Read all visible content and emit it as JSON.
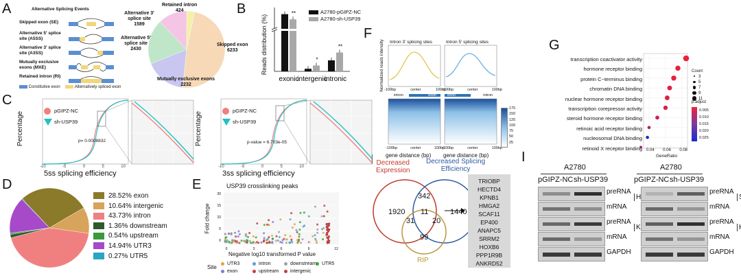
{
  "panel_labels": [
    "A",
    "B",
    "C",
    "D",
    "E",
    "F",
    "G",
    "H",
    "I"
  ],
  "panelA": {
    "header": "Alternative Splicing Events",
    "events": [
      {
        "label": "Skipped exon (SE)"
      },
      {
        "label": "Alternative 5' splice site (A5SS)"
      },
      {
        "label": "Alternative 3' splice site (A3SS)"
      },
      {
        "label": "Mutually exclusive exons (MXE)"
      },
      {
        "label": "Retained intron (RI)"
      }
    ],
    "legend": [
      "Constitutive exon",
      "Alternatively spliced exon"
    ],
    "colors": {
      "constitutive": "#5b8fd1",
      "alternative": "#f2d77a"
    },
    "pie": [
      {
        "label": "Skipped exon",
        "value": 6233,
        "color": "#f7d9b8"
      },
      {
        "label": "Mutually exclusive exons",
        "value": 2232,
        "color": "#c9c6ef"
      },
      {
        "label": "Alternative 5' splice site",
        "value": 2430,
        "color": "#bfe6c8"
      },
      {
        "label": "Alternative 3' splice site",
        "value": 1589,
        "color": "#f4c5e4"
      },
      {
        "label": "Retained intron",
        "value": 424,
        "color": "#f3f0a8"
      }
    ]
  },
  "panelB": {
    "ylabel": "Reads distribution (%)",
    "categories": [
      "exonic",
      "intergenic",
      "intronic"
    ],
    "series": [
      {
        "name": "A2780-pGIPZ-NC",
        "color": "#111111",
        "values": [
          88,
          4,
          17
        ]
      },
      {
        "name": "A2780-sh-USP39",
        "color": "#a8a8a8",
        "values": [
          80,
          9,
          29
        ]
      }
    ],
    "significance": [
      "**",
      "*",
      "**"
    ],
    "ylim": [
      0,
      95
    ]
  },
  "panelC": {
    "left": {
      "xlabel": "5ss splicing efficiency",
      "ylabel": "Percentage",
      "pvalue": "p= 0.0008832",
      "ticks": [
        "-10",
        "-5",
        "0",
        "5",
        "10"
      ]
    },
    "right": {
      "xlabel": "3ss splicing efficiency",
      "ylabel": "Percentage",
      "pvalue": "p-value = 6.703e-05",
      "ticks": [
        "-10",
        "-5",
        "0",
        "5",
        "10"
      ]
    },
    "legend": [
      "pGIPZ-NC",
      "sh-USP39"
    ],
    "colors": {
      "nc": "#f08080",
      "sh": "#1fc2c2"
    }
  },
  "panelD": {
    "slices": [
      {
        "pct": 28.52,
        "label": "28.52%  exon",
        "color": "#8b7a2a"
      },
      {
        "pct": 10.64,
        "label": "10.64%  intergenic",
        "color": "#d8a35a"
      },
      {
        "pct": 43.73,
        "label": "43.73%  intron",
        "color": "#f08080"
      },
      {
        "pct": 1.36,
        "label": "1.36%  downstream",
        "color": "#2e5a2e"
      },
      {
        "pct": 0.54,
        "label": "0.54%  upstream",
        "color": "#3a9a3a"
      },
      {
        "pct": 14.94,
        "label": "14.94%  UTR3",
        "color": "#a64ac9"
      },
      {
        "pct": 0.27,
        "label": "0.27%  UTR5",
        "color": "#2aa6c0"
      }
    ]
  },
  "panelE": {
    "title": "USP39 crosslinking peaks",
    "xlabel": "Negative log10 transformed P value",
    "ylabel": "Fold change",
    "yticks": [
      "20",
      "15",
      "10",
      "5",
      "0"
    ],
    "xticks": [
      "0",
      "3",
      "6",
      "9",
      "12"
    ],
    "legend_title": "Site",
    "legend": [
      {
        "name": "UTR3",
        "color": "#e8a33a"
      },
      {
        "name": "intron",
        "color": "#5aa0d0"
      },
      {
        "name": "downstream",
        "color": "#a0a0a0"
      },
      {
        "name": "UTR5",
        "color": "#3aaa3a"
      },
      {
        "name": "exon",
        "color": "#8a7ad0"
      },
      {
        "name": "upstream",
        "color": "#d03a3a"
      },
      {
        "name": "intergenic",
        "color": "#c04040"
      }
    ]
  },
  "panelF": {
    "ylabel": "Normalized reads intensity",
    "left_title": "Intron 3' splicing sites",
    "right_title": "Intron 5' splicing sites",
    "left_axis": [
      "-100bp",
      "center",
      "100bp"
    ],
    "right_axis": [
      "-100bp",
      "center",
      "100bp"
    ],
    "left_regions": [
      "intron",
      "exon"
    ],
    "right_regions": [
      "exon",
      "intron"
    ],
    "xlabel": "gene distance (bp)",
    "colorbar": [
      "175",
      "150",
      "125",
      "100",
      "75",
      "50",
      "25"
    ],
    "colors": {
      "left": "#e2c64a",
      "right": "#6aaee0"
    }
  },
  "panelG": {
    "terms": [
      {
        "name": "transcription coactivator activity",
        "ratio": 0.085,
        "count": 11,
        "padj": 0.001
      },
      {
        "name": "hormone receptor binding",
        "ratio": 0.075,
        "count": 9,
        "padj": 0.002
      },
      {
        "name": "protein C−terminus binding",
        "ratio": 0.07,
        "count": 9,
        "padj": 0.002
      },
      {
        "name": "chromatin DNA binding",
        "ratio": 0.065,
        "count": 8,
        "padj": 0.003
      },
      {
        "name": "nuclear hormone receptor binding",
        "ratio": 0.062,
        "count": 8,
        "padj": 0.003
      },
      {
        "name": "transcription corepressor activity",
        "ratio": 0.06,
        "count": 7,
        "padj": 0.004
      },
      {
        "name": "steroid hormone receptor binding",
        "ratio": 0.05,
        "count": 6,
        "padj": 0.005
      },
      {
        "name": "retinoic acid receptor binding",
        "ratio": 0.04,
        "count": 4,
        "padj": 0.008
      },
      {
        "name": "nucleosomal DNA binding",
        "ratio": 0.038,
        "count": 4,
        "padj": 0.025
      },
      {
        "name": "retinoid X receptor binding",
        "ratio": 0.03,
        "count": 3,
        "padj": 0.01
      }
    ],
    "xlabel": "GeneRatio",
    "xticks": [
      "0.04",
      "0.06",
      "0.08"
    ],
    "count_title": "Count",
    "count_levels": [
      "3",
      "5",
      "7",
      "9",
      "11"
    ],
    "padj_title": "p.adjust",
    "padj_ticks": [
      "0.005",
      "0.010",
      "0.015",
      "0.020",
      "0.025"
    ]
  },
  "panelH": {
    "sets": [
      {
        "name": "Decreased\nExpression",
        "color": "#c0392b"
      },
      {
        "name": "Decreased Splicing\nEfficiency",
        "color": "#2c5aa0"
      },
      {
        "name": "RIP",
        "color": "#b8963a"
      }
    ],
    "counts": {
      "de_only": "1920",
      "de_dse": "342",
      "dse_only": "1440",
      "all": "11",
      "de_rip": "31",
      "dse_rip": "20",
      "rip_only": "99"
    },
    "genes": [
      "TRIOBP",
      "HECTD4",
      "KPNB1",
      "HMGA2",
      "SCAF11",
      "EP400",
      "ANAPC5",
      "SRRM2",
      "HOXB6",
      "PPP1R9B",
      "ANKRD52"
    ]
  },
  "panelI": {
    "cell_line": "A2780",
    "conditions": [
      "pGIPZ-NC",
      "sh-USP39"
    ],
    "left_genes": [
      "HOXB6",
      "KPNB1"
    ],
    "right_genes": [
      "SCAF11",
      "HMGA2"
    ],
    "row_labels": [
      "preRNA",
      "mRNA"
    ],
    "loading": "GAPDH"
  }
}
